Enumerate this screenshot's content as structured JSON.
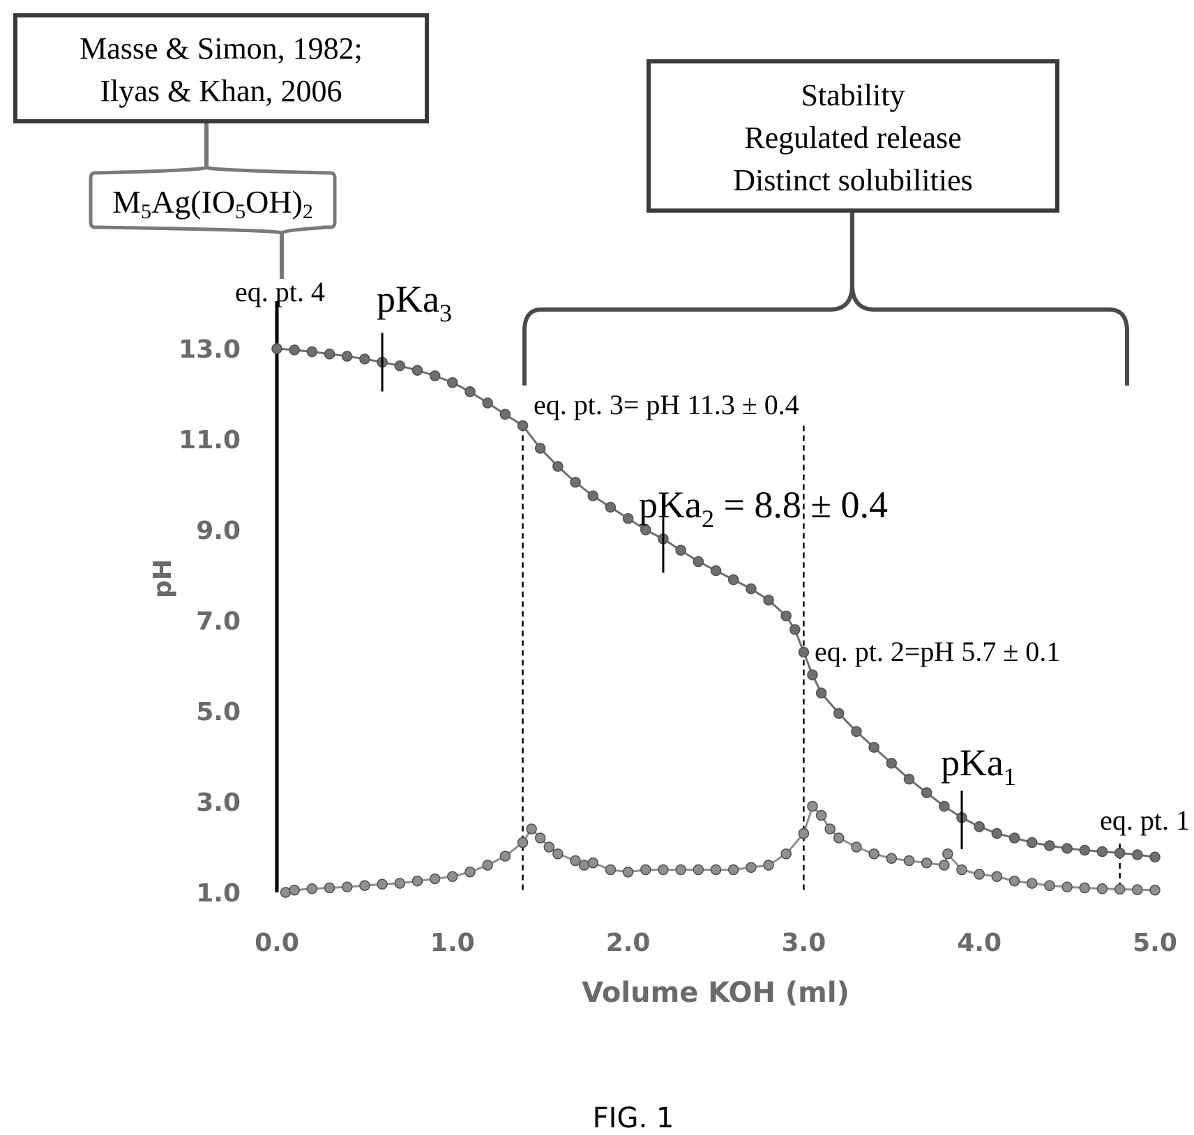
{
  "figure": {
    "caption": "FIG. 1"
  },
  "boxes": {
    "citation": {
      "lines": [
        "Masse & Simon, 1982;",
        "Ilyas & Khan, 2006"
      ]
    },
    "properties": {
      "lines": [
        "Stability",
        "Regulated release",
        "Distinct solubilities"
      ]
    },
    "formula": {
      "text": "M5Ag(IO5OH)2"
    }
  },
  "annotations": {
    "eq4": "eq. pt. 4",
    "eq3": "eq. pt. 3= pH 11.3 ± 0.4",
    "eq2": "eq. pt. 2=pH 5.7 ± 0.1",
    "eq1": "eq. pt. 1",
    "pka3": "pKa3",
    "pka2": "pKa2 = 8.8 ± 0.4",
    "pka1": "pKa1"
  },
  "chart_data": {
    "type": "scatter",
    "xlabel": "Volume KOH (ml)",
    "ylabel": "pH",
    "xlim": [
      0,
      5
    ],
    "ylim": [
      1,
      13
    ],
    "x_ticks": [
      "0.0",
      "1.0",
      "2.0",
      "3.0",
      "4.0",
      "5.0"
    ],
    "y_ticks": [
      "1.0",
      "3.0",
      "5.0",
      "7.0",
      "9.0",
      "11.0",
      "13.0"
    ],
    "grid": false,
    "legend": "none",
    "equivalence_lines_x": [
      0.0,
      1.4,
      3.0,
      4.8
    ],
    "pka_markers": [
      {
        "x": 0.6,
        "y": 12.7
      },
      {
        "x": 2.2,
        "y": 8.7
      },
      {
        "x": 3.9,
        "y": 2.6
      }
    ],
    "series": [
      {
        "color": "#6f6f6f",
        "points": [
          [
            0.0,
            13.0
          ],
          [
            0.1,
            12.97
          ],
          [
            0.2,
            12.93
          ],
          [
            0.3,
            12.88
          ],
          [
            0.4,
            12.83
          ],
          [
            0.5,
            12.77
          ],
          [
            0.6,
            12.7
          ],
          [
            0.7,
            12.62
          ],
          [
            0.8,
            12.52
          ],
          [
            0.9,
            12.4
          ],
          [
            1.0,
            12.25
          ],
          [
            1.1,
            12.05
          ],
          [
            1.2,
            11.8
          ],
          [
            1.3,
            11.55
          ],
          [
            1.4,
            11.3
          ],
          [
            1.5,
            10.8
          ],
          [
            1.6,
            10.4
          ],
          [
            1.7,
            10.05
          ],
          [
            1.8,
            9.75
          ],
          [
            1.9,
            9.5
          ],
          [
            2.0,
            9.25
          ],
          [
            2.1,
            9.0
          ],
          [
            2.2,
            8.8
          ],
          [
            2.3,
            8.55
          ],
          [
            2.4,
            8.3
          ],
          [
            2.5,
            8.1
          ],
          [
            2.6,
            7.9
          ],
          [
            2.7,
            7.7
          ],
          [
            2.8,
            7.45
          ],
          [
            2.9,
            7.1
          ],
          [
            2.95,
            6.8
          ],
          [
            3.0,
            6.3
          ],
          [
            3.05,
            5.8
          ],
          [
            3.1,
            5.4
          ],
          [
            3.2,
            4.95
          ],
          [
            3.3,
            4.55
          ],
          [
            3.4,
            4.2
          ],
          [
            3.5,
            3.85
          ],
          [
            3.6,
            3.5
          ],
          [
            3.7,
            3.2
          ],
          [
            3.8,
            2.9
          ],
          [
            3.9,
            2.65
          ],
          [
            4.0,
            2.45
          ],
          [
            4.1,
            2.3
          ],
          [
            4.2,
            2.2
          ],
          [
            4.3,
            2.1
          ],
          [
            4.4,
            2.03
          ],
          [
            4.5,
            1.97
          ],
          [
            4.6,
            1.93
          ],
          [
            4.7,
            1.9
          ],
          [
            4.8,
            1.87
          ],
          [
            4.9,
            1.83
          ],
          [
            5.0,
            1.78
          ]
        ]
      },
      {
        "color": "#8f8f8f",
        "points": [
          [
            0.05,
            1.0
          ],
          [
            0.1,
            1.05
          ],
          [
            0.2,
            1.08
          ],
          [
            0.3,
            1.1
          ],
          [
            0.4,
            1.12
          ],
          [
            0.5,
            1.15
          ],
          [
            0.6,
            1.18
          ],
          [
            0.7,
            1.2
          ],
          [
            0.8,
            1.25
          ],
          [
            0.9,
            1.3
          ],
          [
            1.0,
            1.35
          ],
          [
            1.1,
            1.45
          ],
          [
            1.2,
            1.6
          ],
          [
            1.3,
            1.8
          ],
          [
            1.4,
            2.1
          ],
          [
            1.45,
            2.4
          ],
          [
            1.5,
            2.2
          ],
          [
            1.55,
            2.0
          ],
          [
            1.6,
            1.85
          ],
          [
            1.7,
            1.7
          ],
          [
            1.75,
            1.6
          ],
          [
            1.8,
            1.65
          ],
          [
            1.9,
            1.5
          ],
          [
            2.0,
            1.45
          ],
          [
            2.1,
            1.5
          ],
          [
            2.2,
            1.5
          ],
          [
            2.3,
            1.5
          ],
          [
            2.4,
            1.5
          ],
          [
            2.5,
            1.5
          ],
          [
            2.6,
            1.5
          ],
          [
            2.7,
            1.55
          ],
          [
            2.8,
            1.6
          ],
          [
            2.9,
            1.85
          ],
          [
            3.0,
            2.3
          ],
          [
            3.05,
            2.9
          ],
          [
            3.1,
            2.7
          ],
          [
            3.15,
            2.4
          ],
          [
            3.2,
            2.2
          ],
          [
            3.3,
            2.0
          ],
          [
            3.4,
            1.85
          ],
          [
            3.5,
            1.75
          ],
          [
            3.6,
            1.7
          ],
          [
            3.7,
            1.65
          ],
          [
            3.8,
            1.6
          ],
          [
            3.82,
            1.85
          ],
          [
            3.9,
            1.5
          ],
          [
            4.0,
            1.4
          ],
          [
            4.1,
            1.35
          ],
          [
            4.2,
            1.25
          ],
          [
            4.3,
            1.2
          ],
          [
            4.4,
            1.15
          ],
          [
            4.5,
            1.12
          ],
          [
            4.6,
            1.1
          ],
          [
            4.7,
            1.08
          ],
          [
            4.8,
            1.07
          ],
          [
            4.9,
            1.06
          ],
          [
            5.0,
            1.05
          ]
        ]
      }
    ]
  }
}
